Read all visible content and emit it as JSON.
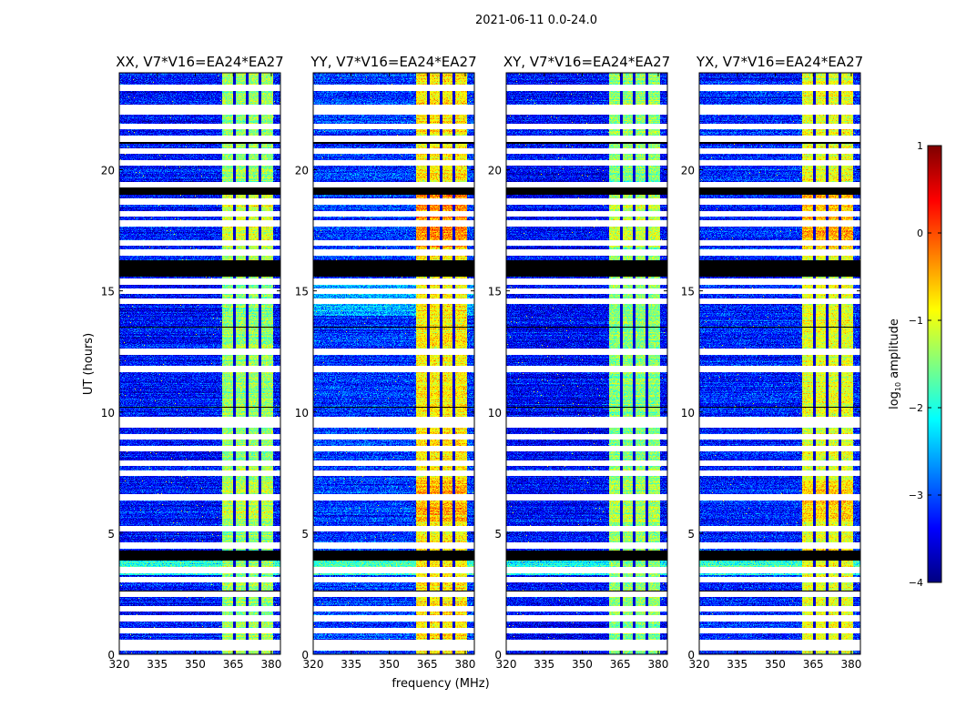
{
  "chart_data": {
    "type": "heatmap",
    "suptitle": "2021-06-11 0.0-24.0",
    "xlabel": "frequency (MHz)",
    "ylabel": "UT (hours)",
    "xlim": [
      320,
      383.6
    ],
    "ylim": [
      0,
      24
    ],
    "xticks": [
      320,
      335,
      350,
      365,
      380
    ],
    "yticks": [
      0,
      5,
      10,
      15,
      20
    ],
    "panels": [
      {
        "title": "XX, V7*V16=EA24*EA27",
        "background_log": -3.3,
        "band_log": -1.4
      },
      {
        "title": "YY, V7*V16=EA24*EA27",
        "background_log": -3.1,
        "band_log": -0.8
      },
      {
        "title": "XY, V7*V16=EA24*EA27",
        "background_log": -3.35,
        "band_log": -1.45
      },
      {
        "title": "YX, V7*V16=EA24*EA27",
        "background_log": -3.2,
        "band_log": -1.0
      }
    ],
    "band_mhz": [
      360.5,
      380.5
    ],
    "band_dark_channels_mhz": [
      365.3,
      370.3,
      375.3
    ],
    "flagged_white_hours": [
      0.3,
      0.5,
      1.0,
      1.5,
      1.9,
      2.5,
      3.1,
      3.5,
      4.5,
      5.2,
      6.5,
      7.5,
      7.9,
      8.5,
      9.0,
      9.5,
      9.7,
      11.8,
      12.5,
      14.6,
      15.0,
      15.4,
      16.6,
      17.0,
      17.8,
      18.2,
      18.7,
      19.4,
      20.3,
      20.8,
      21.3,
      21.8,
      22.4,
      22.6,
      23.4
    ],
    "flagged_black_hours": [
      [
        15.6,
        16.3
      ],
      [
        19.0,
        19.3
      ],
      [
        3.9,
        4.3
      ],
      [
        2.6,
        2.65
      ],
      [
        10.2,
        10.25
      ],
      [
        13.5,
        13.55
      ],
      [
        21.1,
        21.15
      ]
    ],
    "colorbar": {
      "label": "log10 amplitude",
      "label_main": "log",
      "label_sub": "10",
      "label_rest": " amplitude",
      "colormap": "jet",
      "range": [
        -4,
        1
      ],
      "ticks": [
        1,
        0,
        -1,
        -2,
        -3,
        -4
      ],
      "tick_labels": [
        "1",
        "0",
        "−1",
        "−2",
        "−3",
        "−4"
      ]
    }
  }
}
